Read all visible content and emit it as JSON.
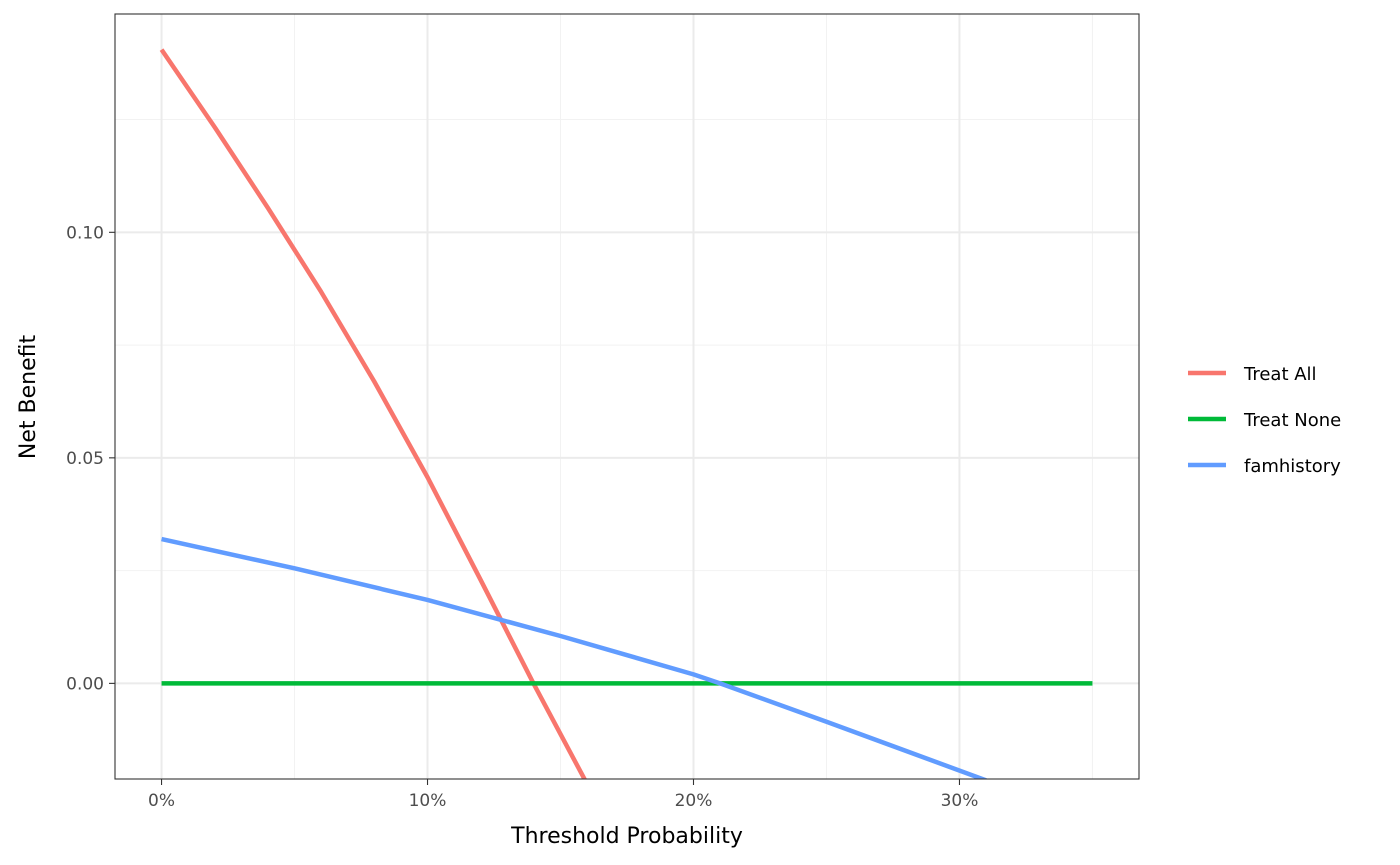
{
  "chart_data": {
    "type": "line",
    "title": "",
    "xlabel": "Threshold Probability",
    "ylabel": "Net Benefit",
    "xlim": [
      -0.0175,
      0.3675
    ],
    "ylim": [
      -0.0212,
      0.1484
    ],
    "x_ticks": [
      {
        "value": 0.0,
        "label": "0%"
      },
      {
        "value": 0.1,
        "label": "10%"
      },
      {
        "value": 0.2,
        "label": "20%"
      },
      {
        "value": 0.3,
        "label": "30%"
      }
    ],
    "x_minor": [
      0.05,
      0.15,
      0.25,
      0.35
    ],
    "y_ticks": [
      {
        "value": 0.0,
        "label": "0.00"
      },
      {
        "value": 0.05,
        "label": "0.05"
      },
      {
        "value": 0.1,
        "label": "0.10"
      }
    ],
    "y_minor": [
      -0.025,
      0.025,
      0.075,
      0.125
    ],
    "grid": true,
    "legend": {
      "position": "right"
    },
    "series": [
      {
        "name": "Treat All",
        "color": "#F8766D",
        "x": [
          0.0,
          0.02,
          0.04,
          0.06,
          0.08,
          0.1,
          0.12,
          0.14,
          0.16
        ],
        "y": [
          0.1405,
          0.1233,
          0.1054,
          0.0868,
          0.0669,
          0.0457,
          0.0229,
          -0.0002,
          -0.0223
        ]
      },
      {
        "name": "Treat None",
        "color": "#00BA38",
        "x": [
          0.0,
          0.35
        ],
        "y": [
          0.0,
          0.0
        ]
      },
      {
        "name": "famhistory",
        "color": "#619CFF",
        "x": [
          0.0,
          0.05,
          0.1,
          0.15,
          0.2,
          0.21,
          0.25,
          0.31
        ],
        "y": [
          0.032,
          0.0255,
          0.0185,
          0.0105,
          0.002,
          0.0,
          -0.0085,
          -0.0215
        ]
      }
    ]
  }
}
